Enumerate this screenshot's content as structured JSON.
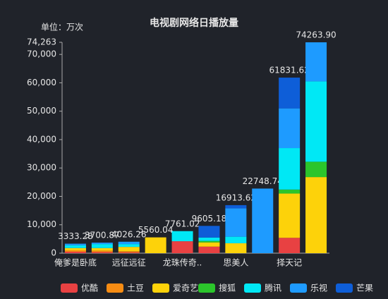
{
  "chart_data": {
    "type": "stacked_bar",
    "title": "电视剧网络日播放量",
    "y_label": "单位：万次",
    "categories": [
      "俺爹是卧底",
      null,
      "远征远征",
      null,
      "龙珠传奇..",
      null,
      "思美人",
      null,
      "择天记",
      null
    ],
    "series": [
      {
        "name": "优酷",
        "color": "#e84142",
        "values": [
          500,
          400,
          300,
          null,
          4200,
          2300,
          null,
          null,
          5400,
          null
        ]
      },
      {
        "name": "土豆",
        "color": "#f78c13",
        "values": [
          500,
          500,
          400,
          null,
          null,
          null,
          null,
          null,
          null,
          null
        ]
      },
      {
        "name": "爱奇艺",
        "color": "#fdd20a",
        "values": [
          800,
          900,
          1500,
          5560.04,
          null,
          1500,
          3500,
          null,
          15600,
          26800
        ]
      },
      {
        "name": "搜狐",
        "color": "#2bc52b",
        "values": [
          null,
          null,
          null,
          null,
          null,
          500,
          null,
          null,
          1400,
          5400
        ]
      },
      {
        "name": "腾讯",
        "color": "#00e8f5",
        "values": [
          1000,
          1400,
          1000,
          null,
          3561.02,
          1200,
          2300,
          null,
          14600,
          28300
        ]
      },
      {
        "name": "乐视",
        "color": "#1e9bff",
        "values": [
          533.28,
          500.87,
          826.26,
          null,
          null,
          null,
          10000,
          22748.74,
          14000,
          13763.9
        ]
      },
      {
        "name": "芒果",
        "color": "#0e5ed8",
        "values": [
          null,
          null,
          null,
          null,
          null,
          4105.18,
          1113.62,
          null,
          10831.62,
          null
        ]
      }
    ],
    "totals": [
      3333.28,
      3700.87,
      4026.26,
      5560.04,
      7761.02,
      9605.18,
      16913.62,
      22748.74,
      61831.62,
      74263.9
    ],
    "value_labels": [
      "3333.28",
      "3700.87",
      "4026.26",
      "5560.04",
      "7761.02",
      "9605.18",
      "16913.62",
      "22748.74",
      "61831.62",
      "74263.90"
    ],
    "ylim": [
      0,
      74263
    ],
    "yticks": [
      0,
      {
        "value": 10000,
        "label": "10,000"
      },
      {
        "value": 20000,
        "label": "20,000"
      },
      {
        "value": 30000,
        "label": "30,000"
      },
      {
        "value": 40000,
        "label": "40,000"
      },
      {
        "value": 50000,
        "label": "50,000"
      },
      {
        "value": 60000,
        "label": "60,000"
      },
      {
        "value": 70000,
        "label": "70,000"
      },
      {
        "value": 74263,
        "label": "74,263"
      }
    ],
    "legend": "bottom"
  }
}
